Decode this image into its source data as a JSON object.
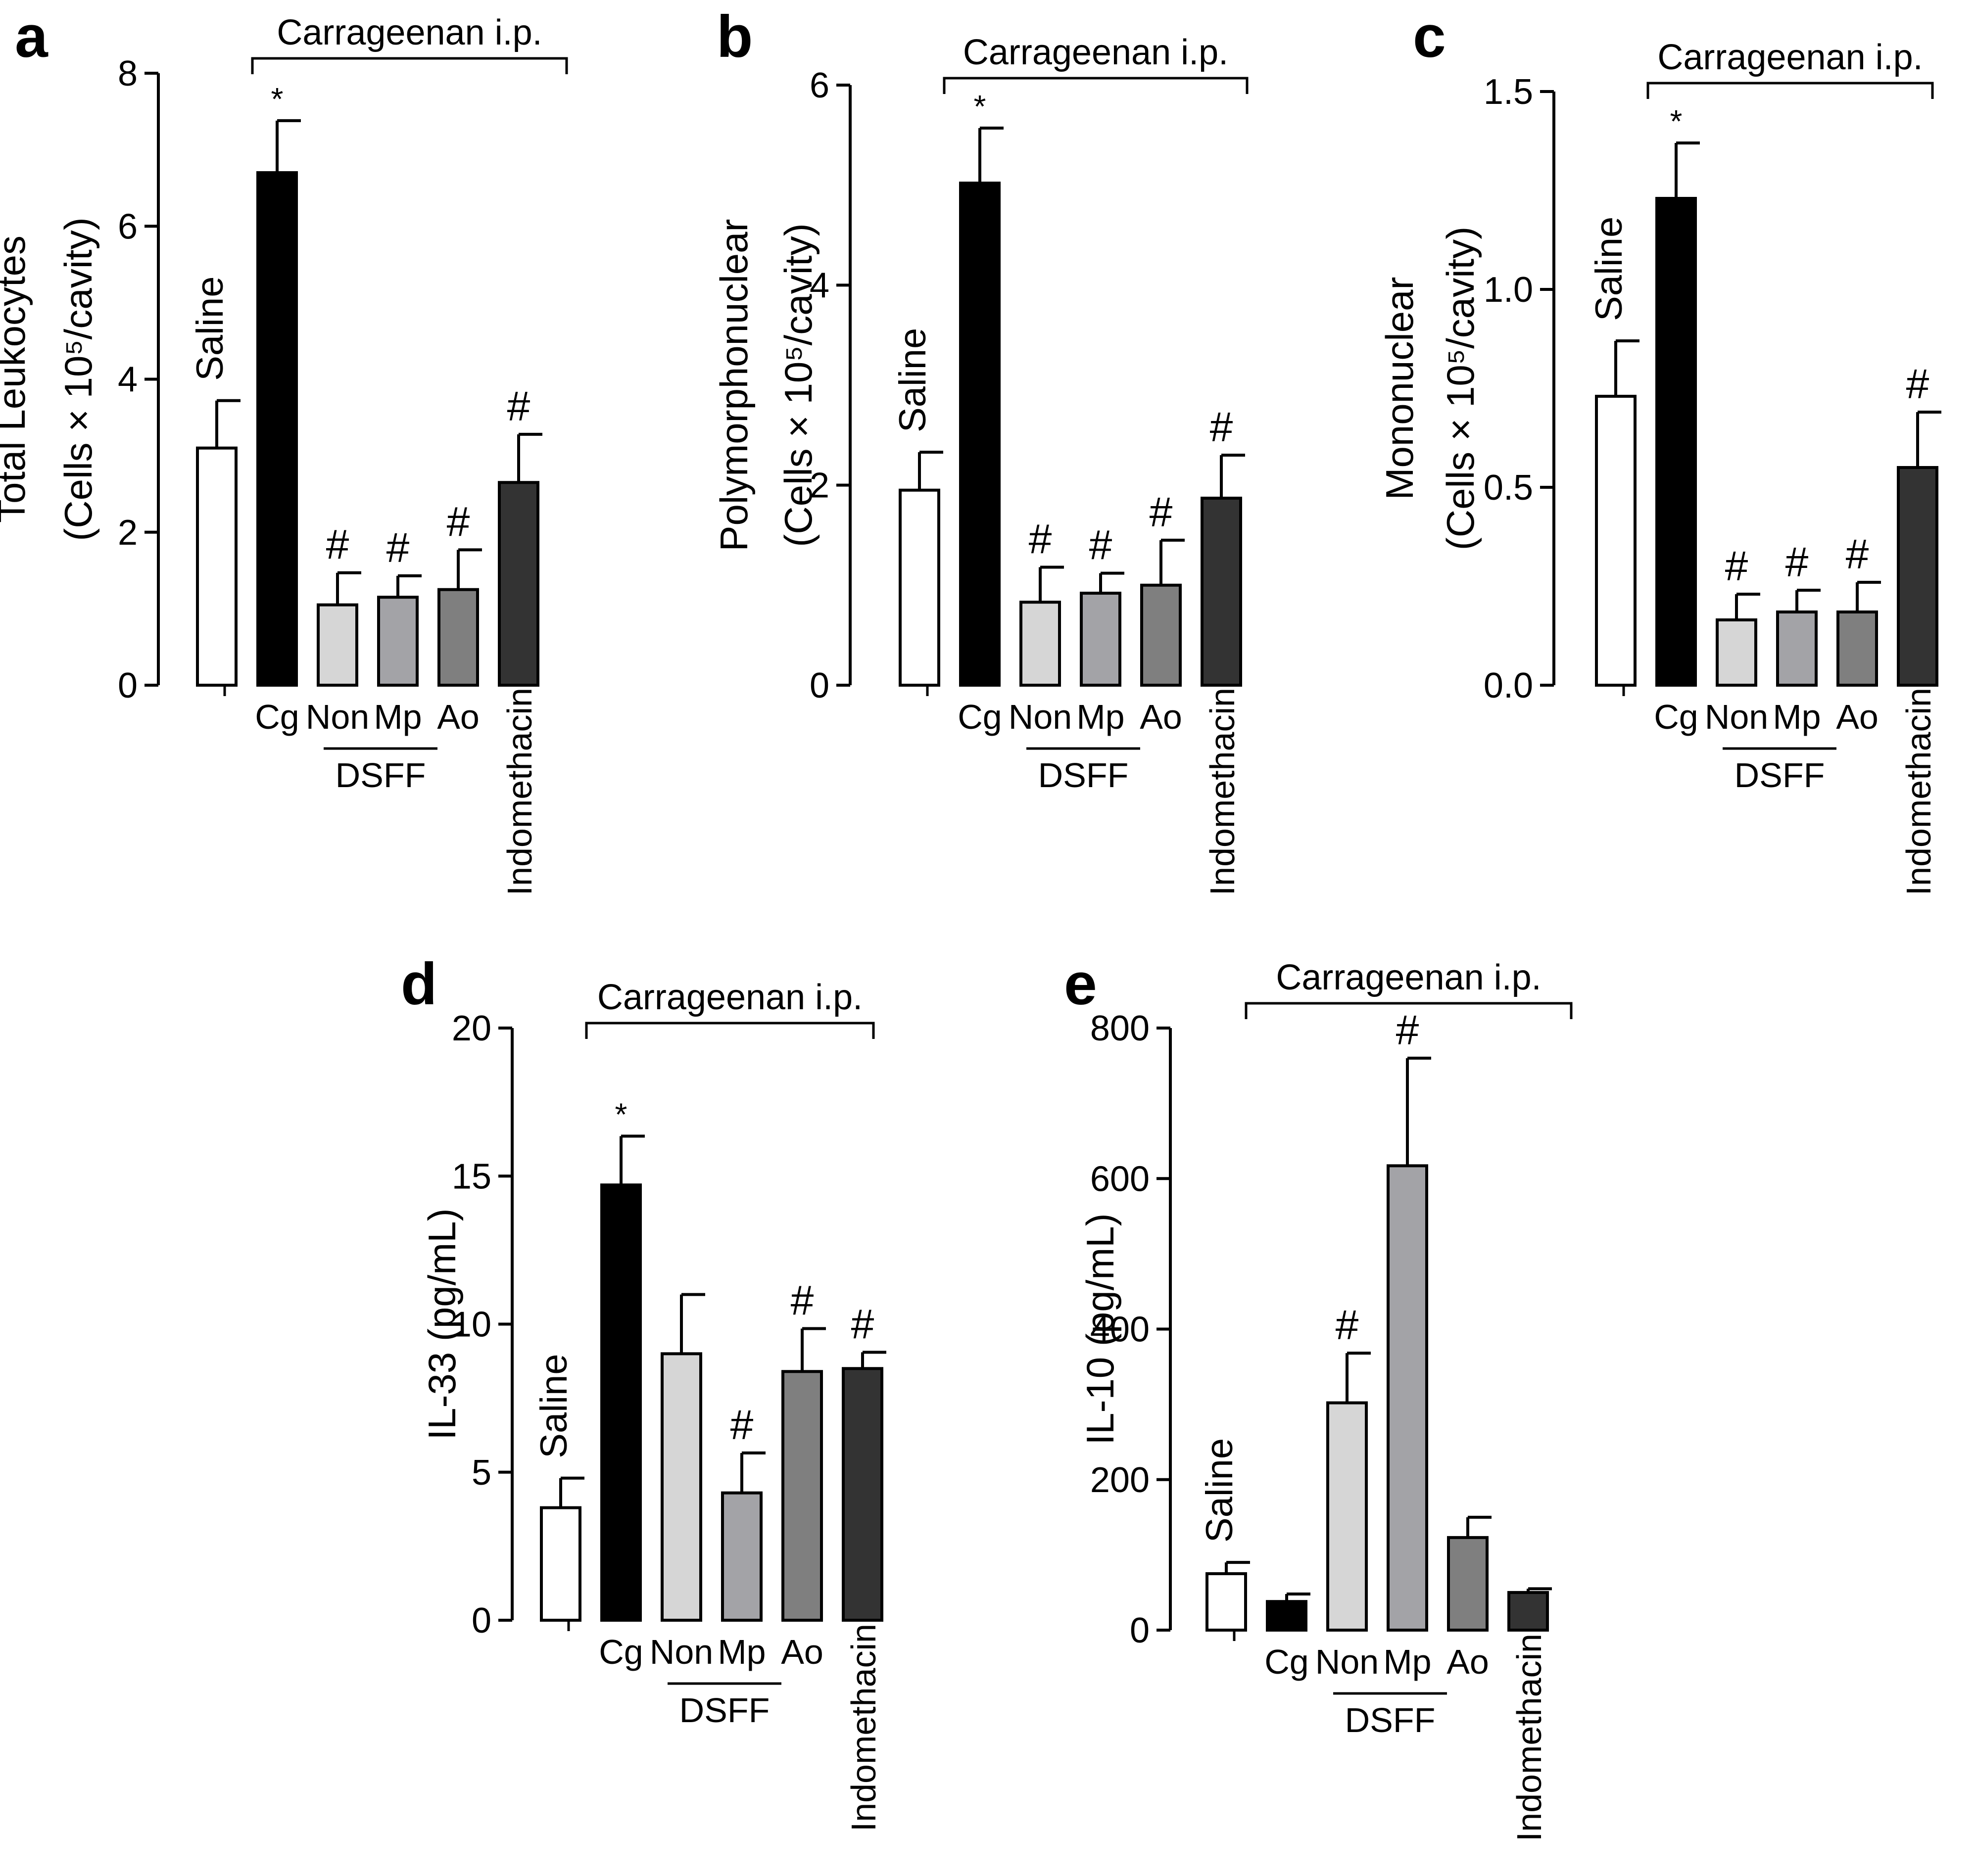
{
  "figure": {
    "bracket_label": "Carrageenan i.p.",
    "group_label": "DSFF",
    "colors": {
      "Saline": "#ffffff",
      "Cg": "#000000",
      "Non": "#d6d6d6",
      "Mp": "#a3a3a7",
      "Ao": "#7f7f7f",
      "Indomethacin": "#333333"
    }
  },
  "chart_data": [
    {
      "panel": "a",
      "type": "bar",
      "title": "",
      "ylabel_line1": "Total Leukocytes",
      "ylabel_line2": "(Cells × 10⁵/cavity)",
      "xlabel": "",
      "categories": [
        "Saline",
        "Cg",
        "Non",
        "Mp",
        "Ao",
        "Indomethacin"
      ],
      "values": [
        3.1,
        6.7,
        1.05,
        1.15,
        1.25,
        2.65
      ],
      "errors": [
        0.62,
        0.68,
        0.42,
        0.28,
        0.52,
        0.63
      ],
      "marks": [
        "",
        "*",
        "#",
        "#",
        "#",
        "#"
      ],
      "ylim": [
        0,
        8
      ],
      "yticks": [
        "0",
        "2",
        "4",
        "6",
        "8"
      ],
      "ytick_values": [
        0,
        2,
        4,
        6,
        8
      ]
    },
    {
      "panel": "b",
      "type": "bar",
      "title": "",
      "ylabel_line1": "Polymorphonuclear",
      "ylabel_line2": "(Cells × 10⁵/cavity)",
      "xlabel": "",
      "categories": [
        "Saline",
        "Cg",
        "Non",
        "Mp",
        "Ao",
        "Indomethacin"
      ],
      "values": [
        1.95,
        5.02,
        0.83,
        0.92,
        1.0,
        1.87
      ],
      "errors": [
        0.38,
        0.55,
        0.35,
        0.2,
        0.45,
        0.43
      ],
      "marks": [
        "",
        "*",
        "#",
        "#",
        "#",
        "#"
      ],
      "ylim": [
        0,
        6
      ],
      "yticks": [
        "0",
        "2",
        "4",
        "6"
      ],
      "ytick_values": [
        0,
        2,
        4,
        6
      ]
    },
    {
      "panel": "c",
      "type": "bar",
      "title": "",
      "ylabel_line1": "Mononuclear",
      "ylabel_line2": "(Cells × 10⁵/cavity)",
      "xlabel": "",
      "categories": [
        "Saline",
        "Cg",
        "Non",
        "Mp",
        "Ao",
        "Indomethacin"
      ],
      "values": [
        0.73,
        1.23,
        0.165,
        0.185,
        0.185,
        0.55
      ],
      "errors": [
        0.14,
        0.14,
        0.065,
        0.055,
        0.075,
        0.14
      ],
      "marks": [
        "",
        "*",
        "#",
        "#",
        "#",
        "#"
      ],
      "ylim": [
        0,
        1.5
      ],
      "yticks": [
        "0.0",
        "0.5",
        "1.0",
        "1.5"
      ],
      "ytick_values": [
        0,
        0.5,
        1.0,
        1.5
      ]
    },
    {
      "panel": "d",
      "type": "bar",
      "title": "",
      "ylabel_line1": "IL-33 (pg/mL)",
      "ylabel_line2": "",
      "xlabel": "",
      "categories": [
        "Saline",
        "Cg",
        "Non",
        "Mp",
        "Ao",
        "Indomethacin"
      ],
      "values": [
        3.8,
        14.7,
        9.0,
        4.3,
        8.4,
        8.5
      ],
      "errors": [
        1.0,
        1.65,
        2.0,
        1.35,
        1.45,
        0.55
      ],
      "marks": [
        "",
        "*",
        "",
        "#",
        "#",
        "#"
      ],
      "ylim": [
        0,
        20
      ],
      "yticks": [
        "0",
        "5",
        "10",
        "15",
        "20"
      ],
      "ytick_values": [
        0,
        5,
        10,
        15,
        20
      ]
    },
    {
      "panel": "e",
      "type": "bar",
      "title": "",
      "ylabel_line1": "IL-10 (pg/mL)",
      "ylabel_line2": "",
      "xlabel": "",
      "categories": [
        "Saline",
        "Cg",
        "Non",
        "Mp",
        "Ao",
        "Indomethacin"
      ],
      "values": [
        75,
        38,
        302,
        617,
        123,
        50
      ],
      "errors": [
        15,
        10,
        66,
        143,
        27,
        5
      ],
      "marks": [
        "",
        "",
        "#",
        "#",
        "",
        ""
      ],
      "ylim": [
        0,
        800
      ],
      "yticks": [
        "0",
        "200",
        "400",
        "600",
        "800"
      ],
      "ytick_values": [
        0,
        200,
        400,
        600,
        800
      ]
    }
  ]
}
